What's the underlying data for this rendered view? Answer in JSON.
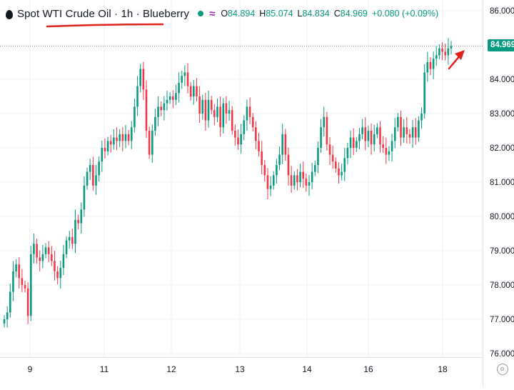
{
  "legend": {
    "title": "Spot WTI Crude Oil · 1h · Blueberry",
    "open_label": "O",
    "open": "84.894",
    "high_label": "H",
    "high": "85.074",
    "low_label": "L",
    "low": "84.834",
    "close_label": "C",
    "close": "84.969",
    "change": "+0.080 (+0.09%)"
  },
  "last_price_tag": "84.969",
  "colors": {
    "up": "#089981",
    "down": "#f23645",
    "grid": "#eef0f4",
    "axis_text": "#131722",
    "annotation": "#e0211c",
    "status": "#089981"
  },
  "chart_data": {
    "type": "candlestick",
    "y_ticks": [
      "76.000",
      "77.000",
      "78.000",
      "79.000",
      "80.000",
      "81.000",
      "82.000",
      "83.000",
      "84.000",
      "85.000",
      "86.000"
    ],
    "x_ticks": [
      "9",
      "11",
      "12",
      "13",
      "14",
      "16",
      "18"
    ],
    "ylim": [
      75.85,
      86.2
    ],
    "last_price": 84.969,
    "grid": true,
    "closes": [
      77.0,
      77.2,
      77.8,
      78.4,
      78.6,
      78.2,
      78.0,
      77.9,
      77.1,
      78.9,
      79.2,
      78.8,
      78.7,
      78.9,
      79.1,
      78.9,
      78.7,
      78.4,
      78.2,
      78.5,
      78.9,
      79.3,
      79.4,
      79.2,
      79.9,
      79.8,
      80.2,
      80.9,
      81.3,
      81.5,
      80.9,
      81.2,
      81.6,
      82.0,
      81.9,
      82.2,
      82.1,
      82.3,
      82.2,
      82.4,
      82.2,
      82.4,
      82.2,
      82.6,
      83.2,
      83.8,
      84.3,
      83.7,
      82.5,
      81.8,
      82.5,
      82.9,
      83.2,
      83.1,
      83.3,
      83.4,
      83.5,
      83.4,
      83.6,
      83.9,
      84.1,
      84.2,
      83.8,
      83.5,
      83.8,
      83.5,
      83.0,
      83.4,
      82.8,
      83.4,
      83.1,
      82.9,
      83.2,
      82.6,
      83.3,
      83.0,
      83.1,
      82.5,
      82.3,
      82.1,
      82.4,
      82.8,
      83.2,
      82.9,
      82.6,
      82.2,
      81.9,
      81.5,
      81.2,
      80.8,
      80.9,
      81.2,
      81.5,
      81.8,
      82.4,
      81.8,
      81.2,
      80.9,
      81.2,
      81.0,
      81.3,
      81.1,
      80.9,
      81.0,
      81.3,
      81.5,
      82.0,
      82.6,
      82.9,
      82.1,
      81.8,
      81.6,
      81.4,
      81.2,
      81.3,
      81.7,
      82.0,
      82.3,
      82.0,
      82.2,
      82.4,
      82.6,
      82.2,
      82.5,
      82.1,
      82.4,
      82.6,
      82.1,
      82.0,
      81.8,
      81.9,
      82.2,
      82.6,
      82.9,
      82.3,
      82.6,
      82.4,
      82.3,
      82.6,
      82.3,
      82.8,
      83.0,
      84.2,
      84.5,
      84.3,
      84.6,
      84.7,
      84.9,
      84.8,
      84.7,
      84.9,
      84.97
    ]
  }
}
